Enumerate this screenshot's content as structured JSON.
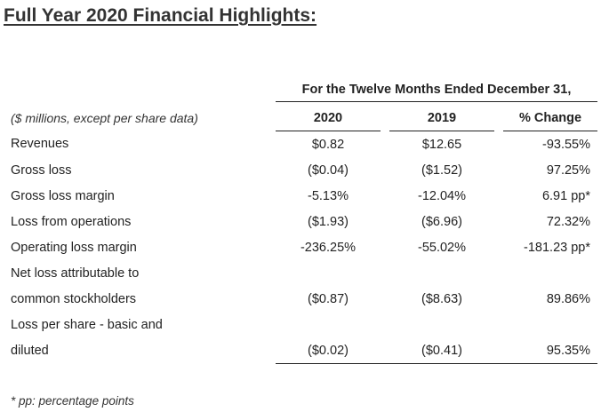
{
  "title": "Full Year 2020 Financial Highlights:",
  "period_header": "For the Twelve Months Ended December 31,",
  "units_note": "($ millions, except per share data)",
  "columns": [
    "2020",
    "2019",
    "% Change"
  ],
  "rows": [
    {
      "label": "Revenues",
      "y2020": "$0.82",
      "y2019": "$12.65",
      "change": "-93.55%"
    },
    {
      "label": "Gross loss",
      "y2020": "($0.04)",
      "y2019": "($1.52)",
      "change": "97.25%"
    },
    {
      "label": "Gross loss margin",
      "y2020": "-5.13%",
      "y2019": "-12.04%",
      "change": "6.91 pp*"
    },
    {
      "label": "Loss from operations",
      "y2020": "($1.93)",
      "y2019": "($6.96)",
      "change": "72.32%"
    },
    {
      "label": "Operating loss margin",
      "y2020": "-236.25%",
      "y2019": "-55.02%",
      "change": "-181.23 pp*"
    },
    {
      "label": "Net loss attributable to",
      "y2020": "",
      "y2019": "",
      "change": ""
    },
    {
      "label": "common stockholders",
      "y2020": "($0.87)",
      "y2019": "($8.63)",
      "change": "89.86%"
    },
    {
      "label": "Loss per share - basic and",
      "y2020": "",
      "y2019": "",
      "change": ""
    },
    {
      "label": "diluted",
      "y2020": "($0.02)",
      "y2019": "($0.41)",
      "change": "95.35%"
    }
  ],
  "footnote": "* pp: percentage points"
}
